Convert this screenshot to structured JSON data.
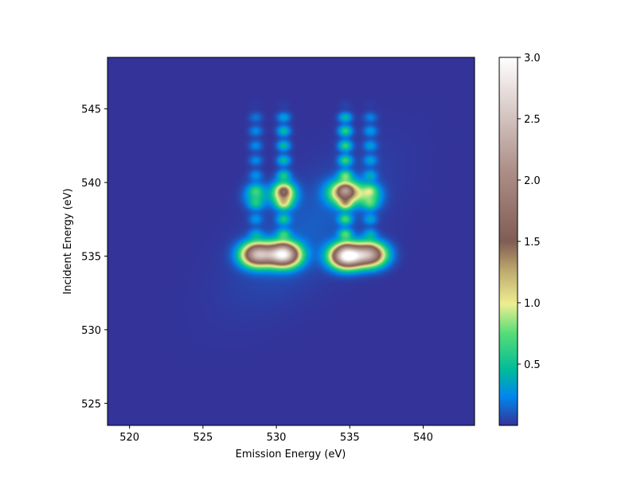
{
  "chart_data": {
    "type": "heatmap",
    "colormap": "terrain",
    "xlabel": "Emission Energy (eV)",
    "ylabel": "Incident Energy (eV)",
    "xlim": [
      518.5,
      543.5
    ],
    "ylim": [
      523.5,
      548.5
    ],
    "x_ticks": [
      520,
      525,
      530,
      535,
      540
    ],
    "y_ticks": [
      525,
      530,
      535,
      540,
      545
    ],
    "colorbar": {
      "min": 0.0,
      "max": 3.0,
      "ticks": [
        0.5,
        1.0,
        1.5,
        2.0,
        2.5,
        3.0
      ],
      "tick_labels": [
        "0.5",
        "1.0",
        "1.5",
        "2.0",
        "2.5",
        "3.0"
      ]
    },
    "background_value": 0.0,
    "peaks": [
      {
        "emission": 528.7,
        "incident": 535.1,
        "intensity": 2.3
      },
      {
        "emission": 530.5,
        "incident": 535.1,
        "intensity": 2.8
      },
      {
        "emission": 534.8,
        "incident": 535.0,
        "intensity": 3.0
      },
      {
        "emission": 536.4,
        "incident": 535.1,
        "intensity": 2.1
      },
      {
        "emission": 530.5,
        "incident": 539.2,
        "intensity": 1.3
      },
      {
        "emission": 534.7,
        "incident": 539.3,
        "intensity": 1.6
      },
      {
        "emission": 536.4,
        "incident": 539.1,
        "intensity": 0.6
      },
      {
        "emission": 528.6,
        "incident": 539.1,
        "intensity": 0.5
      }
    ],
    "streaks": [
      {
        "emission": 528.6,
        "incident_range": [
          536.5,
          544.0
        ],
        "intensity": 0.25
      },
      {
        "emission": 530.5,
        "incident_range": [
          536.5,
          544.0
        ],
        "intensity": 0.45
      },
      {
        "emission": 534.7,
        "incident_range": [
          536.5,
          544.0
        ],
        "intensity": 0.6
      },
      {
        "emission": 536.4,
        "incident_range": [
          536.5,
          544.0
        ],
        "intensity": 0.3
      }
    ],
    "grid": false
  }
}
